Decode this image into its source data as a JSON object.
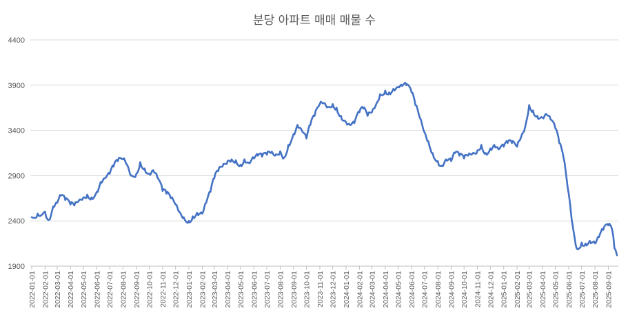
{
  "chart_data": {
    "type": "line",
    "title": "분당 아파트 매매 매물 수",
    "xlabel": "",
    "ylabel": "",
    "ylim": [
      1900,
      4400
    ],
    "y_ticks": [
      "1900",
      "2400",
      "2900",
      "3400",
      "3900",
      "4400"
    ],
    "grid": true,
    "legend": "none",
    "x_tick_labels": [
      "2022-01-01",
      "2022-02-01",
      "2022-03-01",
      "2022-04-01",
      "2022-05-01",
      "2022-06-01",
      "2022-07-01",
      "2022-08-01",
      "2022-09-01",
      "2022-10-01",
      "2022-11-01",
      "2022-12-01",
      "2023-01-01",
      "2023-02-01",
      "2023-03-01",
      "2023-04-01",
      "2023-05-01",
      "2023-06-01",
      "2023-07-01",
      "2023-08-01",
      "2023-09-01",
      "2023-10-01",
      "2023-11-01",
      "2023-12-01",
      "2024-01-01",
      "2024-02-01",
      "2024-03-01",
      "2024-04-01",
      "2024-05-01",
      "2024-06-01",
      "2024-07-01",
      "2024-08-01",
      "2024-09-01",
      "2024-10-01",
      "2024-11-01",
      "2024-12-01",
      "2025-01-01",
      "2025-02-01",
      "2025-03-01",
      "2025-04-01",
      "2025-05-01",
      "2025-06-01",
      "2025-07-01",
      "2025-08-01",
      "2025-09-01"
    ],
    "series": [
      {
        "color": "#4472c4",
        "points": [
          [
            "2022-01-01",
            2440
          ],
          [
            "2022-01-15",
            2480
          ],
          [
            "2022-02-01",
            2500
          ],
          [
            "2022-02-10",
            2410
          ],
          [
            "2022-02-20",
            2560
          ],
          [
            "2022-03-01",
            2600
          ],
          [
            "2022-03-10",
            2680
          ],
          [
            "2022-03-20",
            2630
          ],
          [
            "2022-04-01",
            2580
          ],
          [
            "2022-04-10",
            2570
          ],
          [
            "2022-04-20",
            2620
          ],
          [
            "2022-05-01",
            2660
          ],
          [
            "2022-05-10",
            2690
          ],
          [
            "2022-05-20",
            2660
          ],
          [
            "2022-06-01",
            2720
          ],
          [
            "2022-06-10",
            2830
          ],
          [
            "2022-06-20",
            2870
          ],
          [
            "2022-07-01",
            2920
          ],
          [
            "2022-07-10",
            3000
          ],
          [
            "2022-07-20",
            3060
          ],
          [
            "2022-08-01",
            3080
          ],
          [
            "2022-08-10",
            3020
          ],
          [
            "2022-08-20",
            2900
          ],
          [
            "2022-09-01",
            2920
          ],
          [
            "2022-09-10",
            3050
          ],
          [
            "2022-09-20",
            2980
          ],
          [
            "2022-10-01",
            2920
          ],
          [
            "2022-10-10",
            2960
          ],
          [
            "2022-10-20",
            2880
          ],
          [
            "2022-11-01",
            2730
          ],
          [
            "2022-11-10",
            2700
          ],
          [
            "2022-11-20",
            2650
          ],
          [
            "2022-12-01",
            2580
          ],
          [
            "2022-12-10",
            2500
          ],
          [
            "2022-12-20",
            2440
          ],
          [
            "2023-01-01",
            2400
          ],
          [
            "2023-01-10",
            2450
          ],
          [
            "2023-01-20",
            2490
          ],
          [
            "2023-02-01",
            2480
          ],
          [
            "2023-02-10",
            2600
          ],
          [
            "2023-02-20",
            2720
          ],
          [
            "2023-03-01",
            2870
          ],
          [
            "2023-03-10",
            2950
          ],
          [
            "2023-03-20",
            3000
          ],
          [
            "2023-04-01",
            3060
          ],
          [
            "2023-04-10",
            3080
          ],
          [
            "2023-04-20",
            3070
          ],
          [
            "2023-05-01",
            3020
          ],
          [
            "2023-05-10",
            3080
          ],
          [
            "2023-05-20",
            3040
          ],
          [
            "2023-06-01",
            3090
          ],
          [
            "2023-06-10",
            3120
          ],
          [
            "2023-06-20",
            3110
          ],
          [
            "2023-07-01",
            3130
          ],
          [
            "2023-07-10",
            3150
          ],
          [
            "2023-07-20",
            3120
          ],
          [
            "2023-08-01",
            3170
          ],
          [
            "2023-08-10",
            3100
          ],
          [
            "2023-08-20",
            3240
          ],
          [
            "2023-09-01",
            3360
          ],
          [
            "2023-09-10",
            3460
          ],
          [
            "2023-09-20",
            3400
          ],
          [
            "2023-10-01",
            3310
          ],
          [
            "2023-10-10",
            3460
          ],
          [
            "2023-10-20",
            3560
          ],
          [
            "2023-11-01",
            3690
          ],
          [
            "2023-11-10",
            3700
          ],
          [
            "2023-11-20",
            3660
          ],
          [
            "2023-12-01",
            3690
          ],
          [
            "2023-12-10",
            3650
          ],
          [
            "2023-12-20",
            3560
          ],
          [
            "2024-01-01",
            3490
          ],
          [
            "2024-01-10",
            3460
          ],
          [
            "2024-01-20",
            3480
          ],
          [
            "2024-02-01",
            3600
          ],
          [
            "2024-02-10",
            3640
          ],
          [
            "2024-02-20",
            3560
          ],
          [
            "2024-03-01",
            3600
          ],
          [
            "2024-03-10",
            3680
          ],
          [
            "2024-03-20",
            3800
          ],
          [
            "2024-04-01",
            3840
          ],
          [
            "2024-04-10",
            3820
          ],
          [
            "2024-04-20",
            3860
          ],
          [
            "2024-05-01",
            3880
          ],
          [
            "2024-05-10",
            3890
          ],
          [
            "2024-05-20",
            3900
          ],
          [
            "2024-06-01",
            3820
          ],
          [
            "2024-06-10",
            3680
          ],
          [
            "2024-06-20",
            3540
          ],
          [
            "2024-07-01",
            3380
          ],
          [
            "2024-07-10",
            3280
          ],
          [
            "2024-07-20",
            3150
          ],
          [
            "2024-08-01",
            3060
          ],
          [
            "2024-08-10",
            3010
          ],
          [
            "2024-08-20",
            3080
          ],
          [
            "2024-09-01",
            3060
          ],
          [
            "2024-09-10",
            3150
          ],
          [
            "2024-09-20",
            3120
          ],
          [
            "2024-10-01",
            3090
          ],
          [
            "2024-10-10",
            3120
          ],
          [
            "2024-10-20",
            3140
          ],
          [
            "2024-11-01",
            3180
          ],
          [
            "2024-11-10",
            3240
          ],
          [
            "2024-11-20",
            3150
          ],
          [
            "2024-12-01",
            3200
          ],
          [
            "2024-12-10",
            3240
          ],
          [
            "2024-12-20",
            3190
          ],
          [
            "2025-01-01",
            3220
          ],
          [
            "2025-01-10",
            3260
          ],
          [
            "2025-01-20",
            3260
          ],
          [
            "2025-02-01",
            3220
          ],
          [
            "2025-02-10",
            3320
          ],
          [
            "2025-02-20",
            3440
          ],
          [
            "2025-03-01",
            3680
          ],
          [
            "2025-03-10",
            3620
          ],
          [
            "2025-03-20",
            3560
          ],
          [
            "2025-04-01",
            3540
          ],
          [
            "2025-04-10",
            3580
          ],
          [
            "2025-04-20",
            3520
          ],
          [
            "2025-05-01",
            3420
          ],
          [
            "2025-05-10",
            3260
          ],
          [
            "2025-05-20",
            3100
          ],
          [
            "2025-06-01",
            2700
          ],
          [
            "2025-06-10",
            2350
          ],
          [
            "2025-06-20",
            2090
          ],
          [
            "2025-07-01",
            2160
          ],
          [
            "2025-07-10",
            2150
          ],
          [
            "2025-07-20",
            2180
          ],
          [
            "2025-08-01",
            2150
          ],
          [
            "2025-08-10",
            2220
          ],
          [
            "2025-08-20",
            2300
          ],
          [
            "2025-09-01",
            2350
          ],
          [
            "2025-09-10",
            2300
          ],
          [
            "2025-09-15",
            2100
          ],
          [
            "2025-09-21",
            2020
          ]
        ]
      }
    ]
  }
}
